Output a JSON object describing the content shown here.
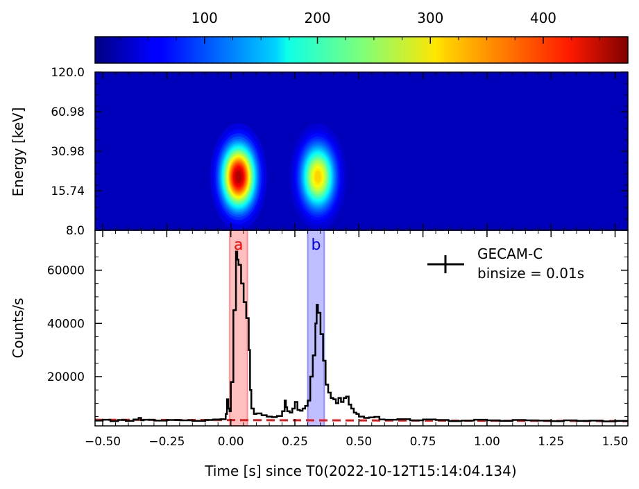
{
  "colorbar": {
    "ticks": [
      100,
      200,
      300,
      400
    ],
    "vmin": 3,
    "vmax": 475,
    "colormap": "jet"
  },
  "chart_data": [
    {
      "type": "heatmap",
      "ylabel": "Energy [keV]",
      "y_scale": "log",
      "ylim": [
        8.0,
        120.0
      ],
      "ytick_labels": [
        "120.0",
        "60.98",
        "30.98",
        "15.74",
        "8.0"
      ],
      "ytick_values": [
        120.0,
        60.98,
        30.98,
        15.74,
        8.0
      ],
      "xlim": [
        -0.53,
        1.55
      ],
      "background_level": 30,
      "blobs": [
        {
          "t": 0.03,
          "energy_keV": 20,
          "peak": 470
        },
        {
          "t": 0.34,
          "energy_keV": 20,
          "peak": 330
        }
      ]
    },
    {
      "type": "line",
      "xlabel": "Time [s] since T0(2022-10-12T15:14:04.134)",
      "ylabel": "Counts/s",
      "xlim": [
        -0.53,
        1.55
      ],
      "ylim": [
        1500,
        75000
      ],
      "xtick_labels": [
        "−0.50",
        "−0.25",
        "0.00",
        "0.25",
        "0.50",
        "0.75",
        "1.00",
        "1.25",
        "1.50"
      ],
      "xtick_values": [
        -0.5,
        -0.25,
        0.0,
        0.25,
        0.5,
        0.75,
        1.0,
        1.25,
        1.5
      ],
      "ytick_labels": [
        "20000",
        "40000",
        "60000"
      ],
      "ytick_values": [
        20000,
        40000,
        60000
      ],
      "legend": {
        "label_line1": "GECAM-C",
        "label_line2": "binsize = 0.01s",
        "position": "top-right"
      },
      "regions": [
        {
          "label": "a",
          "x0": -0.005,
          "x1": 0.065,
          "color": "#ff0000"
        },
        {
          "label": "b",
          "x0": 0.3,
          "x1": 0.365,
          "color": "#0000ff"
        }
      ],
      "background_fit": {
        "x": [
          -0.53,
          1.55
        ],
        "y": [
          3800,
          3300
        ],
        "color": "#e31a1c"
      },
      "series": [
        {
          "color": "#000000",
          "x": [
            -0.53,
            -0.5,
            -0.47,
            -0.44,
            -0.41,
            -0.38,
            -0.36,
            -0.35,
            -0.34,
            -0.3,
            -0.25,
            -0.2,
            -0.15,
            -0.1,
            -0.07,
            -0.04,
            -0.02,
            -0.015,
            -0.01,
            -0.005,
            0.0,
            0.01,
            0.02,
            0.025,
            0.03,
            0.04,
            0.05,
            0.06,
            0.07,
            0.075,
            0.08,
            0.09,
            0.1,
            0.12,
            0.14,
            0.16,
            0.18,
            0.2,
            0.21,
            0.215,
            0.22,
            0.23,
            0.24,
            0.25,
            0.26,
            0.27,
            0.28,
            0.29,
            0.3,
            0.31,
            0.32,
            0.33,
            0.335,
            0.34,
            0.35,
            0.36,
            0.37,
            0.38,
            0.39,
            0.4,
            0.41,
            0.42,
            0.43,
            0.44,
            0.45,
            0.46,
            0.47,
            0.48,
            0.49,
            0.5,
            0.52,
            0.54,
            0.56,
            0.58,
            0.6,
            0.65,
            0.7,
            0.75,
            0.8,
            0.85,
            0.9,
            0.95,
            1.0,
            1.05,
            1.1,
            1.15,
            1.2,
            1.25,
            1.3,
            1.35,
            1.4,
            1.45,
            1.5,
            1.55
          ],
          "y": [
            3500,
            3800,
            3300,
            3700,
            3400,
            3900,
            4500,
            3600,
            3800,
            3500,
            3700,
            3600,
            3400,
            3700,
            3900,
            4000,
            6000,
            11500,
            8000,
            7000,
            18000,
            45000,
            67000,
            64000,
            62000,
            55000,
            48000,
            42000,
            30000,
            15000,
            8000,
            6000,
            6200,
            5500,
            5000,
            4800,
            5200,
            7000,
            11000,
            8500,
            7000,
            6500,
            8000,
            10500,
            7500,
            7200,
            8000,
            9000,
            11000,
            20000,
            28000,
            40000,
            47000,
            44000,
            36000,
            26000,
            17000,
            14000,
            12000,
            11500,
            10000,
            12000,
            10500,
            12000,
            12500,
            9500,
            8000,
            6500,
            6000,
            5000,
            4500,
            4700,
            4900,
            3900,
            3800,
            4000,
            3600,
            3900,
            3700,
            3300,
            3500,
            3800,
            3600,
            3400,
            3700,
            3600,
            3500,
            3300,
            3600,
            3400,
            3500,
            3200,
            3400,
            3300
          ]
        }
      ]
    }
  ]
}
